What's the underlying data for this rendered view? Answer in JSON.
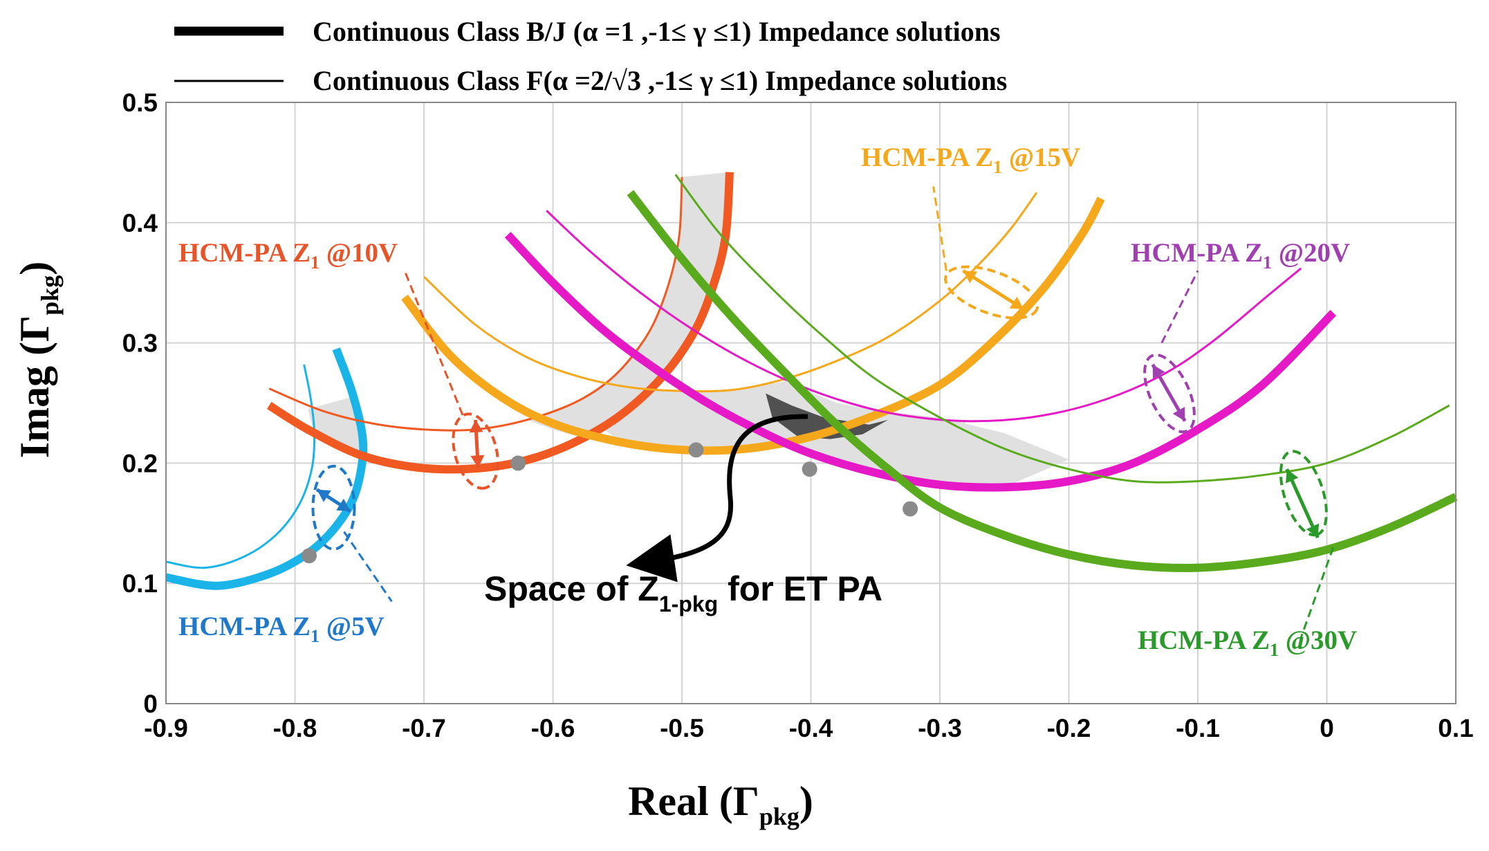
{
  "chart_data": {
    "type": "line",
    "xlabel": "Real (Γ",
    "xlabel_sub": "pkg",
    "xlabel_end": ")",
    "ylabel": "Imag (Γ",
    "ylabel_sub": "pkg",
    "ylabel_end": ")",
    "xlim": [
      -0.9,
      0.1
    ],
    "ylim": [
      0,
      0.5
    ],
    "grid": true,
    "xticks": [
      "-0.9",
      "-0.8",
      "-0.7",
      "-0.6",
      "-0.5",
      "-0.4",
      "-0.3",
      "-0.2",
      "-0.1",
      "0",
      "0.1"
    ],
    "yticks": [
      "0",
      "0.1",
      "0.2",
      "0.3",
      "0.4",
      "0.5"
    ],
    "legend": {
      "placement": "top",
      "entries": [
        {
          "style": "thick",
          "label": "Continuous  Class  B/J  (α =1 ,-1≤ γ ≤1)  Impedance solutions"
        },
        {
          "style": "thin",
          "label": "Continuous  Class  F(α =2/√3 ,-1≤ γ ≤1)   Impedance solutions"
        }
      ]
    },
    "series": [
      {
        "name": "HCM-PA Z1 @5V",
        "color": "#1ab4e8",
        "bj": [
          [
            -0.9,
            0.105
          ],
          [
            -0.86,
            0.098
          ],
          [
            -0.82,
            0.108
          ],
          [
            -0.79,
            0.125
          ],
          [
            -0.77,
            0.145
          ],
          [
            -0.755,
            0.17
          ],
          [
            -0.748,
            0.2
          ],
          [
            -0.748,
            0.225
          ],
          [
            -0.756,
            0.26
          ],
          [
            -0.768,
            0.295
          ]
        ],
        "f": [
          [
            -0.9,
            0.118
          ],
          [
            -0.87,
            0.113
          ],
          [
            -0.84,
            0.122
          ],
          [
            -0.815,
            0.14
          ],
          [
            -0.797,
            0.165
          ],
          [
            -0.787,
            0.195
          ],
          [
            -0.785,
            0.225
          ],
          [
            -0.788,
            0.255
          ],
          [
            -0.793,
            0.282
          ]
        ],
        "marker": [
          -0.789,
          0.123
        ]
      },
      {
        "name": "HCM-PA Z1 @10V",
        "color": "#f05a22",
        "bj": [
          [
            -0.82,
            0.248
          ],
          [
            -0.79,
            0.228
          ],
          [
            -0.75,
            0.207
          ],
          [
            -0.71,
            0.197
          ],
          [
            -0.67,
            0.195
          ],
          [
            -0.63,
            0.2
          ],
          [
            -0.59,
            0.214
          ],
          [
            -0.55,
            0.238
          ],
          [
            -0.515,
            0.272
          ],
          [
            -0.49,
            0.31
          ],
          [
            -0.475,
            0.35
          ],
          [
            -0.466,
            0.39
          ],
          [
            -0.463,
            0.442
          ]
        ],
        "f": [
          [
            -0.82,
            0.262
          ],
          [
            -0.78,
            0.244
          ],
          [
            -0.74,
            0.233
          ],
          [
            -0.7,
            0.228
          ],
          [
            -0.66,
            0.228
          ],
          [
            -0.62,
            0.236
          ],
          [
            -0.58,
            0.252
          ],
          [
            -0.55,
            0.275
          ],
          [
            -0.525,
            0.31
          ],
          [
            -0.51,
            0.35
          ],
          [
            -0.502,
            0.39
          ],
          [
            -0.5,
            0.438
          ]
        ],
        "marker": [
          -0.627,
          0.2
        ]
      },
      {
        "name": "HCM-PA Z1 @15V",
        "color": "#f5a81c",
        "bj": [
          [
            -0.715,
            0.338
          ],
          [
            -0.68,
            0.29
          ],
          [
            -0.64,
            0.255
          ],
          [
            -0.6,
            0.233
          ],
          [
            -0.55,
            0.218
          ],
          [
            -0.5,
            0.211
          ],
          [
            -0.45,
            0.212
          ],
          [
            -0.4,
            0.222
          ],
          [
            -0.35,
            0.24
          ],
          [
            -0.3,
            0.265
          ],
          [
            -0.26,
            0.3
          ],
          [
            -0.22,
            0.345
          ],
          [
            -0.19,
            0.39
          ],
          [
            -0.175,
            0.42
          ]
        ],
        "f": [
          [
            -0.7,
            0.355
          ],
          [
            -0.66,
            0.315
          ],
          [
            -0.62,
            0.288
          ],
          [
            -0.58,
            0.272
          ],
          [
            -0.54,
            0.263
          ],
          [
            -0.5,
            0.26
          ],
          [
            -0.46,
            0.261
          ],
          [
            -0.42,
            0.27
          ],
          [
            -0.38,
            0.285
          ],
          [
            -0.34,
            0.305
          ],
          [
            -0.3,
            0.335
          ],
          [
            -0.27,
            0.365
          ],
          [
            -0.245,
            0.395
          ],
          [
            -0.225,
            0.425
          ]
        ],
        "marker": [
          -0.489,
          0.211
        ]
      },
      {
        "name": "HCM-PA Z1 @20V",
        "color": "#e619c7",
        "bj": [
          [
            -0.635,
            0.39
          ],
          [
            -0.6,
            0.35
          ],
          [
            -0.56,
            0.31
          ],
          [
            -0.52,
            0.278
          ],
          [
            -0.48,
            0.25
          ],
          [
            -0.44,
            0.227
          ],
          [
            -0.4,
            0.208
          ],
          [
            -0.35,
            0.192
          ],
          [
            -0.3,
            0.182
          ],
          [
            -0.25,
            0.18
          ],
          [
            -0.2,
            0.185
          ],
          [
            -0.15,
            0.2
          ],
          [
            -0.1,
            0.228
          ],
          [
            -0.05,
            0.265
          ],
          [
            0.005,
            0.325
          ]
        ],
        "f": [
          [
            -0.605,
            0.41
          ],
          [
            -0.57,
            0.375
          ],
          [
            -0.53,
            0.34
          ],
          [
            -0.49,
            0.31
          ],
          [
            -0.45,
            0.285
          ],
          [
            -0.41,
            0.265
          ],
          [
            -0.37,
            0.25
          ],
          [
            -0.33,
            0.24
          ],
          [
            -0.28,
            0.235
          ],
          [
            -0.23,
            0.238
          ],
          [
            -0.18,
            0.25
          ],
          [
            -0.13,
            0.272
          ],
          [
            -0.09,
            0.3
          ],
          [
            -0.045,
            0.34
          ],
          [
            -0.02,
            0.362
          ]
        ],
        "marker": [
          -0.401,
          0.195
        ]
      },
      {
        "name": "HCM-PA Z1 @30V",
        "color": "#5aaa1e",
        "bj": [
          [
            -0.54,
            0.425
          ],
          [
            -0.5,
            0.37
          ],
          [
            -0.46,
            0.32
          ],
          [
            -0.42,
            0.275
          ],
          [
            -0.38,
            0.232
          ],
          [
            -0.34,
            0.195
          ],
          [
            -0.3,
            0.163
          ],
          [
            -0.25,
            0.14
          ],
          [
            -0.2,
            0.124
          ],
          [
            -0.15,
            0.115
          ],
          [
            -0.1,
            0.113
          ],
          [
            -0.05,
            0.118
          ],
          [
            0.0,
            0.128
          ],
          [
            0.05,
            0.147
          ],
          [
            0.1,
            0.172
          ]
        ],
        "f": [
          [
            -0.505,
            0.44
          ],
          [
            -0.47,
            0.39
          ],
          [
            -0.43,
            0.345
          ],
          [
            -0.39,
            0.305
          ],
          [
            -0.35,
            0.27
          ],
          [
            -0.3,
            0.238
          ],
          [
            -0.25,
            0.212
          ],
          [
            -0.2,
            0.195
          ],
          [
            -0.15,
            0.185
          ],
          [
            -0.1,
            0.185
          ],
          [
            -0.05,
            0.19
          ],
          [
            0.0,
            0.2
          ],
          [
            0.05,
            0.222
          ],
          [
            0.095,
            0.248
          ]
        ],
        "marker": [
          -0.323,
          0.162
        ]
      }
    ],
    "annotations": [
      {
        "name": "annot-5v",
        "text": "HCM-PA  Z",
        "sub": "1",
        "suffix": " @5V",
        "color": "#1f78c8"
      },
      {
        "name": "annot-10v",
        "text": "HCM-PA  Z",
        "sub": "1",
        "suffix": " @10V",
        "color": "#e8542a"
      },
      {
        "name": "annot-15v",
        "text": "HCM-PA  Z",
        "sub": "1",
        "suffix": " @15V",
        "color": "#f5a81c"
      },
      {
        "name": "annot-20v",
        "text": "HCM-PA  Z",
        "sub": "1",
        "suffix": " @20V",
        "color": "#a040b0"
      },
      {
        "name": "annot-30v",
        "text": "HCM-PA  Z",
        "sub": "1",
        "suffix": " @30V",
        "color": "#2a9a2a"
      }
    ],
    "space_label": {
      "text": "Space of  Z",
      "sub": "1-pkg",
      "suffix": " for ET PA"
    },
    "shaded_regions": [
      {
        "name": "light-region",
        "color": "#e0e0e0"
      },
      {
        "name": "dark-region",
        "color": "#505050"
      }
    ]
  }
}
